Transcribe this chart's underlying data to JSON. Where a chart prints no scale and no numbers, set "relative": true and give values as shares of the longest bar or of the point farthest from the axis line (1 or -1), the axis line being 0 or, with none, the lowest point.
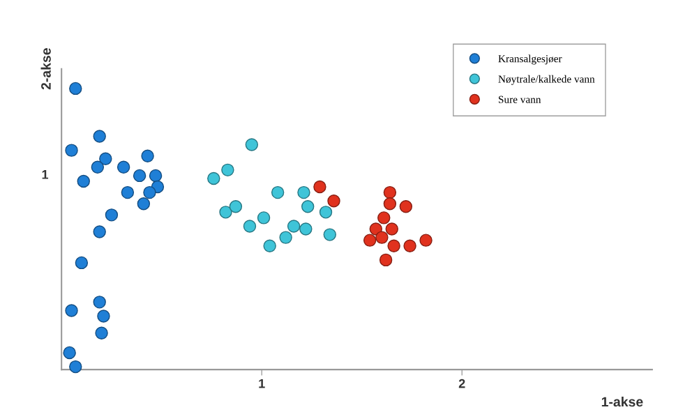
{
  "chart_data": {
    "type": "scatter",
    "xlabel": "1-akse",
    "ylabel": "2-akse",
    "xlim": [
      0,
      2.95
    ],
    "xticks": [
      1,
      2
    ],
    "relative": true,
    "annotations": [
      "1"
    ],
    "grid": false,
    "legend": "top right",
    "marker": "circle",
    "series": [
      {
        "name": "Kransalgesjøer",
        "color": "#1f7fd6",
        "x": [
          0.07,
          0.19,
          0.05,
          0.43,
          0.22,
          0.18,
          0.31,
          0.39,
          0.47,
          0.11,
          0.48,
          0.33,
          0.44,
          0.41,
          0.25,
          0.19,
          0.1,
          0.19,
          0.05,
          0.21,
          0.2,
          0.04,
          0.07
        ],
        "values": [
          1,
          0.83,
          0.78,
          0.76,
          0.75,
          0.72,
          0.72,
          0.69,
          0.69,
          0.67,
          0.65,
          0.63,
          0.63,
          0.59,
          0.55,
          0.49,
          0.38,
          0.24,
          0.21,
          0.19,
          0.13,
          0.06,
          0.01
        ]
      },
      {
        "name": "Nøytrale/kalkede vann",
        "color": "#3fc4d8",
        "x": [
          0.95,
          0.83,
          0.76,
          1.08,
          1.21,
          0.82,
          0.87,
          1.23,
          1.32,
          1.01,
          0.94,
          1.16,
          1.22,
          1.12,
          1.34,
          1.04
        ],
        "values": [
          0.8,
          0.71,
          0.68,
          0.63,
          0.63,
          0.56,
          0.58,
          0.58,
          0.56,
          0.54,
          0.51,
          0.51,
          0.5,
          0.47,
          0.48,
          0.44
        ]
      },
      {
        "name": "Sure vann",
        "color": "#e0321e",
        "x": [
          1.29,
          1.36,
          1.64,
          1.64,
          1.72,
          1.61,
          1.57,
          1.65,
          1.6,
          1.54,
          1.66,
          1.74,
          1.82,
          1.62
        ],
        "values": [
          0.65,
          0.6,
          0.63,
          0.59,
          0.58,
          0.54,
          0.5,
          0.5,
          0.47,
          0.46,
          0.44,
          0.44,
          0.46,
          0.39
        ]
      }
    ]
  }
}
